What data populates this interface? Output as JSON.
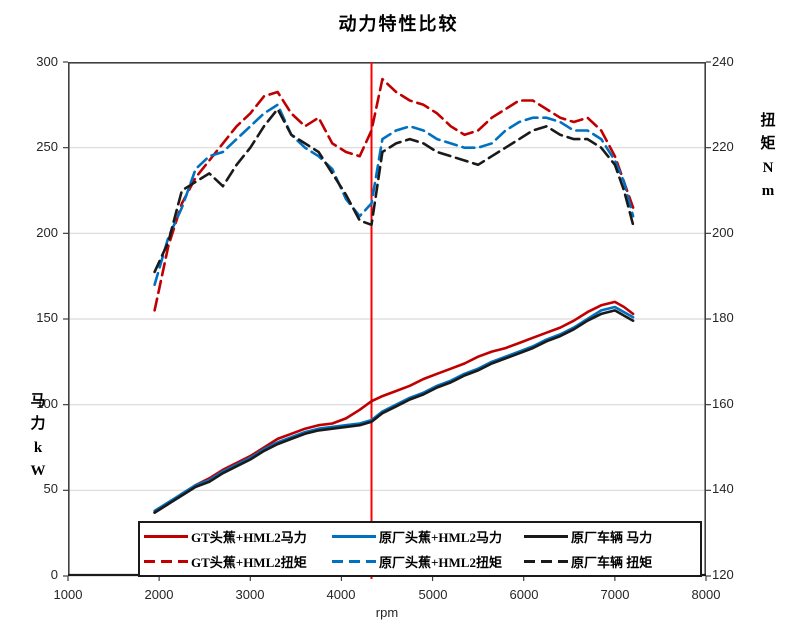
{
  "chart_data": {
    "type": "line",
    "title": "动力特性比较",
    "x_axis": {
      "label": "rpm",
      "min": 1000,
      "max": 8000,
      "ticks": [
        1000,
        2000,
        3000,
        4000,
        5000,
        6000,
        7000,
        8000
      ]
    },
    "left_axis": {
      "label": "马力 kW",
      "label_stacked": "马\n力\nk\nW",
      "min": 0,
      "max": 300,
      "ticks": [
        300,
        250,
        200,
        150,
        100,
        50,
        0
      ]
    },
    "right_axis": {
      "label": "扭矩 Nm",
      "label_stacked": "扭\n矩\nN\nm",
      "min": 120,
      "max": 240,
      "ticks": [
        240,
        220,
        200,
        180,
        160,
        140,
        120
      ]
    },
    "grid": "horizontal-only",
    "marker_line": {
      "rpm": 4330,
      "color": "#ff0000"
    },
    "colors": {
      "gt": "#c00000",
      "stock_header_hml2": "#0070c0",
      "stock": "#1a1a1a",
      "gridline": "#d9d9d9",
      "border": "#404040"
    },
    "legend_position": "bottom-inside",
    "rpm": [
      1950,
      2100,
      2250,
      2400,
      2550,
      2700,
      2850,
      3000,
      3150,
      3300,
      3450,
      3600,
      3750,
      3900,
      4050,
      4200,
      4330,
      4450,
      4600,
      4750,
      4900,
      5050,
      5200,
      5350,
      5500,
      5650,
      5800,
      5950,
      6100,
      6250,
      6400,
      6550,
      6700,
      6850,
      7000,
      7100,
      7200
    ],
    "series": [
      {
        "name": "GT头蕉+HML2马力",
        "axis": "left",
        "color": "#c00000",
        "dash": "solid",
        "values": [
          37,
          42,
          48,
          53,
          57,
          62,
          66,
          70,
          75,
          80,
          83,
          86,
          88,
          89,
          92,
          97,
          102,
          105,
          108,
          111,
          115,
          118,
          121,
          124,
          128,
          131,
          133,
          136,
          139,
          142,
          145,
          149,
          154,
          158,
          160,
          157,
          153
        ]
      },
      {
        "name": "原厂头蕉+HML2马力",
        "axis": "left",
        "color": "#0070c0",
        "dash": "solid",
        "values": [
          38,
          43,
          48,
          53,
          56,
          61,
          65,
          69,
          74,
          78,
          81,
          84,
          86,
          87,
          88,
          89,
          91,
          96,
          100,
          104,
          107,
          111,
          114,
          118,
          121,
          125,
          128,
          131,
          134,
          138,
          141,
          145,
          150,
          155,
          157,
          154,
          151
        ]
      },
      {
        "name": "原厂车辆 马力",
        "axis": "left",
        "color": "#1a1a1a",
        "dash": "solid",
        "values": [
          37,
          42,
          47,
          52,
          55,
          60,
          64,
          68,
          73,
          77,
          80,
          83,
          85,
          86,
          87,
          88,
          90,
          95,
          99,
          103,
          106,
          110,
          113,
          117,
          120,
          124,
          127,
          130,
          133,
          137,
          140,
          144,
          149,
          153,
          155,
          152,
          149
        ]
      },
      {
        "name": "GT头蕉+HML2扭矩",
        "axis": "right",
        "color": "#c00000",
        "dash": "dashed",
        "values": [
          182,
          197,
          207,
          213,
          217,
          221,
          225,
          228,
          232,
          233,
          228,
          225,
          227,
          221,
          219,
          218,
          224,
          236,
          233,
          231,
          230,
          228,
          225,
          223,
          224,
          227,
          229,
          231,
          231,
          229,
          227,
          226,
          227,
          224,
          218,
          212,
          206
        ]
      },
      {
        "name": "原厂头蕉+HML2扭矩",
        "axis": "right",
        "color": "#0070c0",
        "dash": "dashed",
        "values": [
          188,
          199,
          206,
          215,
          218,
          219,
          222,
          225,
          228,
          230,
          223,
          220,
          218,
          215,
          208,
          204,
          207,
          222,
          224,
          225,
          224,
          222,
          221,
          220,
          220,
          221,
          224,
          226,
          227,
          227,
          226,
          224,
          224,
          222,
          217,
          212,
          204
        ]
      },
      {
        "name": "原厂车辆 扭矩",
        "axis": "right",
        "color": "#1a1a1a",
        "dash": "dashed",
        "values": [
          191,
          198,
          210,
          212,
          214,
          211,
          216,
          220,
          225,
          229,
          223,
          221,
          219,
          214,
          209,
          203,
          202,
          219,
          221,
          222,
          221,
          219,
          218,
          217,
          216,
          218,
          220,
          222,
          224,
          225,
          223,
          222,
          222,
          220,
          216,
          210,
          202
        ]
      }
    ]
  }
}
